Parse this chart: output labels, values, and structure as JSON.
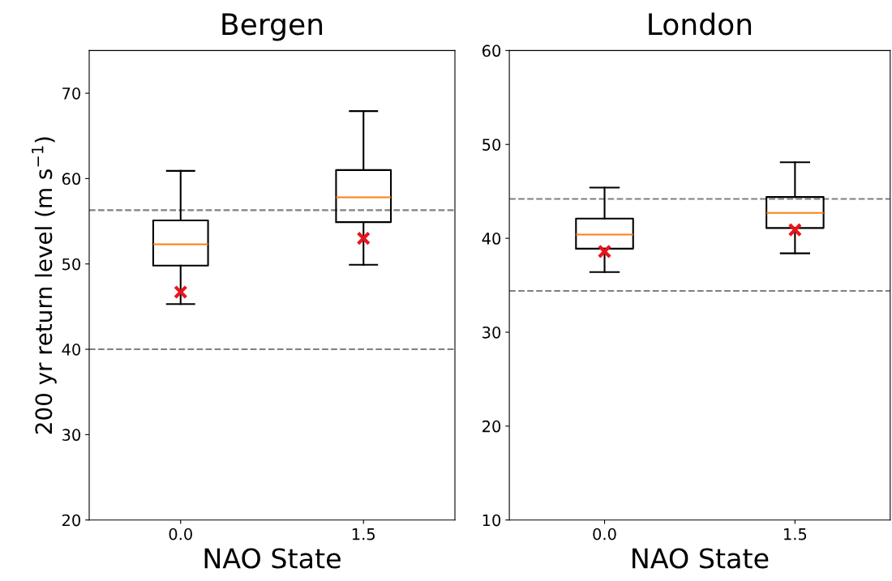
{
  "chart_data": [
    {
      "type": "box",
      "title": "Bergen",
      "xlabel": "NAO State",
      "ylabel": "200 yr return level (m s$^{−1}$)",
      "categories": [
        "0.0",
        "1.5"
      ],
      "boxes": [
        {
          "low": 45.3,
          "q1": 49.8,
          "median": 52.3,
          "q3": 55.1,
          "high": 60.9
        },
        {
          "low": 49.9,
          "q1": 54.9,
          "median": 57.8,
          "q3": 61.0,
          "high": 67.9
        }
      ],
      "series": [
        {
          "type": "scatter",
          "x": [
            "0.0",
            "1.5"
          ],
          "values": [
            46.7,
            53.0
          ],
          "color": "#e8141c",
          "marker": "cross"
        }
      ],
      "ref_lines": [
        {
          "axis": "y",
          "value": 56.3,
          "color": "#808080",
          "line_style": "dashed"
        },
        {
          "axis": "y",
          "value": 40,
          "color": "#808080",
          "line_style": "dashed"
        }
      ],
      "ylim": [
        20,
        75
      ],
      "yticks": [
        20,
        30,
        40,
        50,
        60,
        70
      ],
      "grid": false
    },
    {
      "type": "box",
      "title": "London",
      "xlabel": "NAO State",
      "categories": [
        "0.0",
        "1.5"
      ],
      "boxes": [
        {
          "low": 36.4,
          "q1": 38.9,
          "median": 40.4,
          "q3": 42.1,
          "high": 45.4
        },
        {
          "low": 38.4,
          "q1": 41.1,
          "median": 42.7,
          "q3": 44.4,
          "high": 48.1
        }
      ],
      "series": [
        {
          "type": "scatter",
          "x": [
            "0.0",
            "1.5"
          ],
          "values": [
            38.6,
            40.9
          ],
          "color": "#e8141c",
          "marker": "cross"
        }
      ],
      "ref_lines": [
        {
          "axis": "y",
          "value": 44.2,
          "color": "#808080",
          "line_style": "dashed"
        },
        {
          "axis": "y",
          "value": 34.4,
          "color": "#808080",
          "line_style": "dashed"
        }
      ],
      "ylim": [
        10,
        60
      ],
      "yticks": [
        10,
        20,
        30,
        40,
        50,
        60
      ],
      "grid": false
    }
  ]
}
